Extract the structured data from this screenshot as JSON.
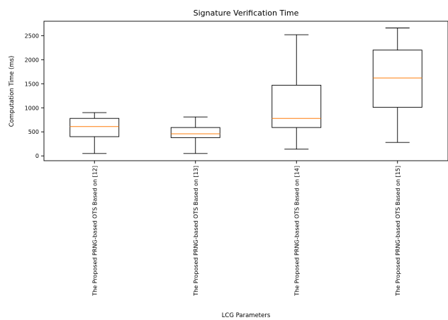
{
  "chart_data": {
    "type": "box",
    "title": "Signature Verification Time",
    "xlabel": "LCG Parameters",
    "ylabel": "Computation Time (ms)",
    "ylim": [
      -100,
      2800
    ],
    "yticks": [
      0,
      500,
      1000,
      1500,
      2000,
      2500
    ],
    "grid": false,
    "colors": {
      "box": "#000000",
      "median": "#ff7f0e",
      "whisker": "#000000"
    },
    "categories": [
      "The Proposed PRNG-based OTS Based on [12]",
      "The Proposed PRNG-based OTS Based on [13]",
      "The Proposed PRNG-based OTS Based on [14]",
      "The Proposed PRNG-based OTS Based on [15]"
    ],
    "boxes": [
      {
        "whisker_low": 50,
        "q1": 400,
        "median": 610,
        "q3": 780,
        "whisker_high": 900
      },
      {
        "whisker_low": 50,
        "q1": 380,
        "median": 460,
        "q3": 590,
        "whisker_high": 810
      },
      {
        "whisker_low": 140,
        "q1": 590,
        "median": 780,
        "q3": 1470,
        "whisker_high": 2520
      },
      {
        "whisker_low": 280,
        "q1": 1010,
        "median": 1620,
        "q3": 2200,
        "whisker_high": 2660
      }
    ]
  }
}
